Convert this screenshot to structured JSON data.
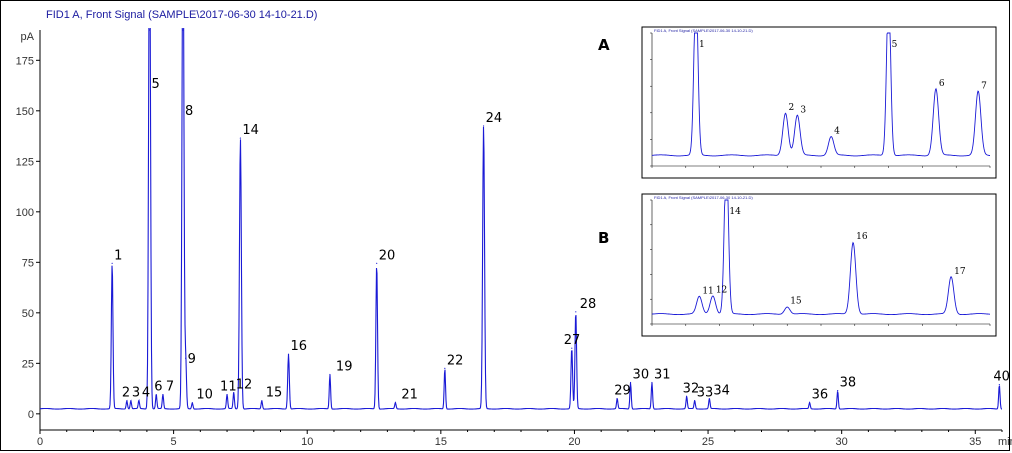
{
  "signal_title": "FID1 A, Front Signal (SAMPLE\\2017-06-30 14-10-21.D)",
  "colors": {
    "trace": "#1a1ad6",
    "axis": "#000000",
    "title": "#1a1aa0"
  },
  "chart_data": {
    "type": "line",
    "title": "FID1 A, Front Signal (SAMPLE\\2017-06-30 14-10-21.D)",
    "ylabel": "pA",
    "xlabel": "min",
    "xlim": [
      0,
      36
    ],
    "ylim": [
      -8,
      190
    ],
    "baseline": 2.5,
    "x_ticks": [
      "0",
      "5",
      "10",
      "15",
      "20",
      "25",
      "30",
      "35"
    ],
    "x_tick_values": [
      0,
      5,
      10,
      15,
      20,
      25,
      30,
      35
    ],
    "y_ticks": [
      "0",
      "25",
      "50",
      "75",
      "100",
      "125",
      "150",
      "175"
    ],
    "y_tick_values": [
      0,
      25,
      50,
      75,
      100,
      125,
      150,
      175
    ],
    "peaks": [
      {
        "label": "1",
        "rt": 2.7,
        "height": 72
      },
      {
        "label": "2",
        "rt": 3.25,
        "height": 4
      },
      {
        "label": "3",
        "rt": 3.4,
        "height": 4
      },
      {
        "label": "4",
        "rt": 3.7,
        "height": 4
      },
      {
        "label": "5",
        "rt": 4.1,
        "height": 250
      },
      {
        "label": "6",
        "rt": 4.35,
        "height": 7
      },
      {
        "label": "7",
        "rt": 4.6,
        "height": 7
      },
      {
        "label": "8",
        "rt": 5.35,
        "height": 250
      },
      {
        "label": "9",
        "rt": 5.45,
        "height": 25
      },
      {
        "label": "10",
        "rt": 5.7,
        "height": 3
      },
      {
        "label": "11",
        "rt": 7.0,
        "height": 7
      },
      {
        "label": "12",
        "rt": 7.25,
        "height": 8
      },
      {
        "label": "14",
        "rt": 7.5,
        "height": 134
      },
      {
        "label": "15",
        "rt": 8.3,
        "height": 4
      },
      {
        "label": "16",
        "rt": 9.3,
        "height": 27
      },
      {
        "label": "19",
        "rt": 10.85,
        "height": 17
      },
      {
        "label": "20",
        "rt": 12.6,
        "height": 72
      },
      {
        "label": "21",
        "rt": 13.3,
        "height": 3
      },
      {
        "label": "22",
        "rt": 15.15,
        "height": 20
      },
      {
        "label": "24",
        "rt": 16.6,
        "height": 140
      },
      {
        "label": "27",
        "rt": 19.9,
        "height": 30
      },
      {
        "label": "28",
        "rt": 20.05,
        "height": 48
      },
      {
        "label": "29",
        "rt": 21.6,
        "height": 5
      },
      {
        "label": "30",
        "rt": 22.1,
        "height": 13
      },
      {
        "label": "31",
        "rt": 22.9,
        "height": 13
      },
      {
        "label": "32",
        "rt": 24.2,
        "height": 6
      },
      {
        "label": "33",
        "rt": 24.5,
        "height": 4
      },
      {
        "label": "34",
        "rt": 25.05,
        "height": 5
      },
      {
        "label": "36",
        "rt": 28.8,
        "height": 3
      },
      {
        "label": "38",
        "rt": 29.85,
        "height": 9
      },
      {
        "label": "40",
        "rt": 35.9,
        "height": 12
      }
    ],
    "insets": [
      {
        "letter": "A",
        "title": "FID1 A, Front Signal (SAMPLE\\2017-06-30 14-10-21.D)",
        "peaks": [
          {
            "label": "1",
            "rt": 0.13,
            "height": 1.25
          },
          {
            "label": "2",
            "rt": 0.395,
            "height": 0.32
          },
          {
            "label": "3",
            "rt": 0.43,
            "height": 0.3
          },
          {
            "label": "4",
            "rt": 0.53,
            "height": 0.14
          },
          {
            "label": "5",
            "rt": 0.7,
            "height": 1.25
          },
          {
            "label": "6",
            "rt": 0.84,
            "height": 0.5
          },
          {
            "label": "7",
            "rt": 0.965,
            "height": 0.48
          }
        ]
      },
      {
        "letter": "B",
        "title": "FID1 A, Front Signal (SAMPLE\\2017-06-30 14-10-21.D)",
        "peaks": [
          {
            "label": "11",
            "rt": 0.14,
            "height": 0.14
          },
          {
            "label": "12",
            "rt": 0.18,
            "height": 0.15
          },
          {
            "label": "14",
            "rt": 0.22,
            "height": 1.3
          },
          {
            "label": "15",
            "rt": 0.4,
            "height": 0.06
          },
          {
            "label": "16",
            "rt": 0.595,
            "height": 0.58
          },
          {
            "label": "17",
            "rt": 0.885,
            "height": 0.3
          }
        ]
      }
    ]
  }
}
